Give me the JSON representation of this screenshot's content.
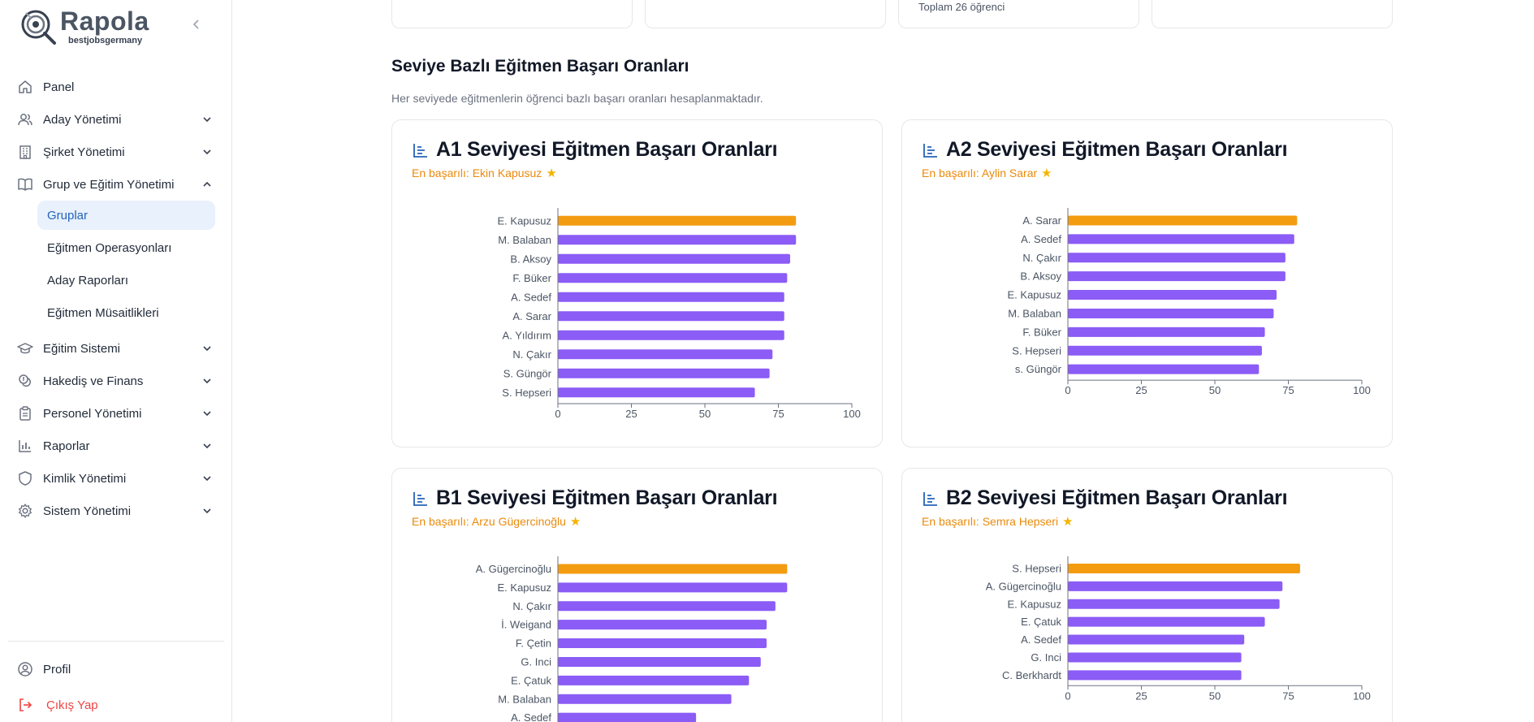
{
  "app": {
    "logo_title": "Rapola",
    "logo_subtitle": "bestjobsgermany"
  },
  "sidebar": {
    "items": [
      {
        "label": "Panel",
        "icon": "home-icon"
      },
      {
        "label": "Aday Yönetimi",
        "icon": "users-icon"
      },
      {
        "label": "Şirket Yönetimi",
        "icon": "building-icon"
      },
      {
        "label": "Grup ve Eğitim Yönetimi",
        "icon": "book-icon"
      },
      {
        "label": "Eğitim Sistemi",
        "icon": "graduation-cap-icon"
      },
      {
        "label": "Hakediş ve Finans",
        "icon": "coins-icon"
      },
      {
        "label": "Personel Yönetimi",
        "icon": "clipboard-icon"
      },
      {
        "label": "Raporlar",
        "icon": "bar-chart-icon"
      },
      {
        "label": "Kimlik Yönetimi",
        "icon": "shield-icon"
      },
      {
        "label": "Sistem Yönetimi",
        "icon": "gear-icon"
      }
    ],
    "subitems": [
      {
        "label": "Gruplar",
        "active": true
      },
      {
        "label": "Eğitmen Operasyonları",
        "active": false
      },
      {
        "label": "Aday Raporları",
        "active": false
      },
      {
        "label": "Eğitmen Müsaitlikleri",
        "active": false
      }
    ],
    "profile_label": "Profil",
    "logout_label": "Çıkış Yap"
  },
  "top_cards": {
    "card3_text": "Toplam 26 öğrenci"
  },
  "section": {
    "title": "Seviye Bazlı Eğitmen Başarı Oranları",
    "description": "Her seviyede eğitmenlerin öğrenci bazlı başarı oranları hesaplanmaktadır."
  },
  "colors": {
    "highlight_bar": "#f39c12",
    "normal_bar": "#8b5cf6",
    "active_nav_bg": "#e8f1fc",
    "accent_blue": "#2563b8",
    "best_text": "#ea8a0c",
    "logout_red": "#ef4444"
  },
  "chart_data": [
    {
      "type": "bar",
      "orientation": "horizontal",
      "title": "A1 Seviyesi Eğitmen Başarı Oranları",
      "best_label": "En başarılı: Ekin Kapusuz",
      "categories": [
        "E. Kapusuz",
        "M. Balaban",
        "B. Aksoy",
        "F. Büker",
        "A. Sedef",
        "A. Sarar",
        "A. Yıldırım",
        "N. Çakır",
        "S. Güngör",
        "S. Hepseri"
      ],
      "values": [
        81,
        81,
        79,
        78,
        77,
        77,
        77,
        73,
        72,
        67
      ],
      "highlight_index": 0,
      "xlim": [
        0,
        100
      ],
      "xticks": [
        0,
        25,
        50,
        75,
        100
      ]
    },
    {
      "type": "bar",
      "orientation": "horizontal",
      "title": "A2 Seviyesi Eğitmen Başarı Oranları",
      "best_label": "En başarılı: Aylin Sarar",
      "categories": [
        "A. Sarar",
        "A. Sedef",
        "N. Çakır",
        "B. Aksoy",
        "E. Kapusuz",
        "M. Balaban",
        "F. Büker",
        "S. Hepseri",
        "s. Güngör"
      ],
      "values": [
        78,
        77,
        74,
        74,
        71,
        70,
        67,
        66,
        65
      ],
      "highlight_index": 0,
      "xlim": [
        0,
        100
      ],
      "xticks": [
        0,
        25,
        50,
        75,
        100
      ]
    },
    {
      "type": "bar",
      "orientation": "horizontal",
      "title": "B1 Seviyesi Eğitmen Başarı Oranları",
      "best_label": "En başarılı: Arzu Gügercinoğlu",
      "categories": [
        "A. Gügercinoğlu",
        "E. Kapusuz",
        "N. Çakır",
        "İ. Weigand",
        "F. Çetin",
        "G. Inci",
        "E. Çatuk",
        "M. Balaban",
        "A. Sedef"
      ],
      "values": [
        78,
        78,
        74,
        71,
        71,
        69,
        65,
        59,
        47
      ],
      "highlight_index": 0,
      "xlim": [
        0,
        100
      ],
      "xticks": [
        0,
        25,
        50,
        75,
        100
      ]
    },
    {
      "type": "bar",
      "orientation": "horizontal",
      "title": "B2 Seviyesi Eğitmen Başarı Oranları",
      "best_label": "En başarılı: Semra Hepseri",
      "categories": [
        "S. Hepseri",
        "A. Gügercinoğlu",
        "E. Kapusuz",
        "E. Çatuk",
        "A. Sedef",
        "G. Inci",
        "C. Berkhardt"
      ],
      "values": [
        79,
        73,
        72,
        67,
        60,
        59,
        59
      ],
      "highlight_index": 0,
      "xlim": [
        0,
        100
      ],
      "xticks": [
        0,
        25,
        50,
        75,
        100
      ]
    }
  ]
}
